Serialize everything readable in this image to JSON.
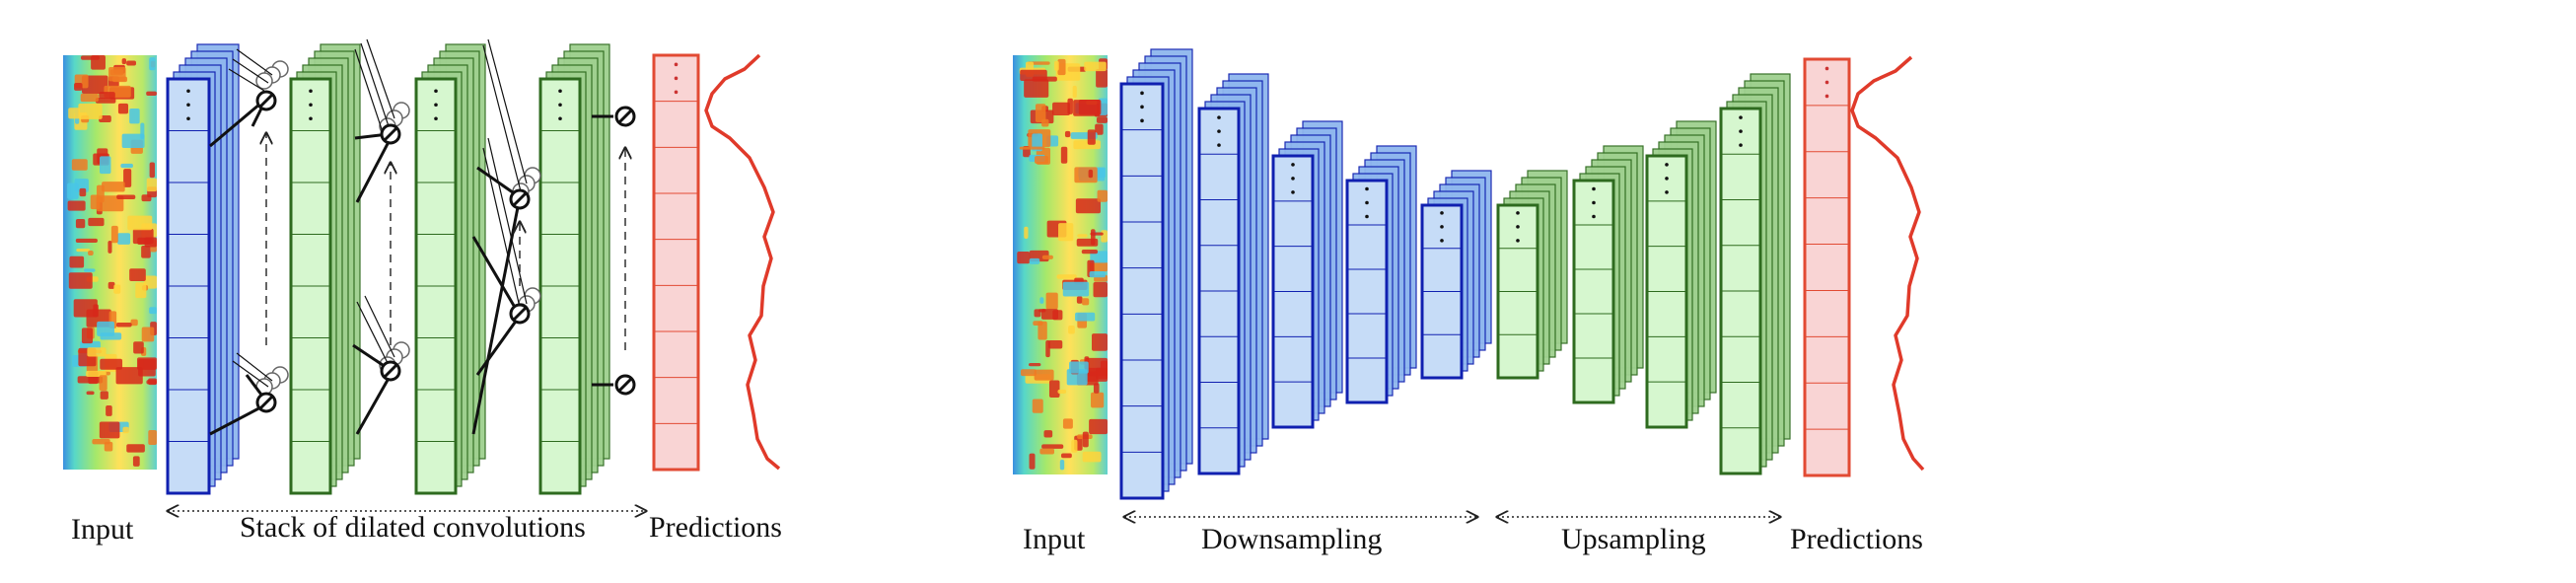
{
  "left_panel": {
    "input_label": "Input",
    "stack_label": "Stack of dilated convolutions",
    "predictions_label": "Predictions"
  },
  "right_panel": {
    "input_label": "Input",
    "downsampling_label": "Downsampling",
    "upsampling_label": "Upsampling",
    "predictions_label": "Predictions"
  },
  "colors": {
    "blue_fill": "#c6dcf7",
    "blue_stroke": "#1020b0",
    "blue_back": "#8fb7ee",
    "green_fill": "#d6f7cf",
    "green_stroke": "#2e6b1f",
    "green_back": "#9fd08f",
    "red_fill": "#f9d4d4",
    "red_stroke": "#e24a33",
    "curve": "#e03a2a"
  },
  "icons": [
    "spectrogram-image",
    "dilated-connection-icon",
    "prediction-curve"
  ]
}
